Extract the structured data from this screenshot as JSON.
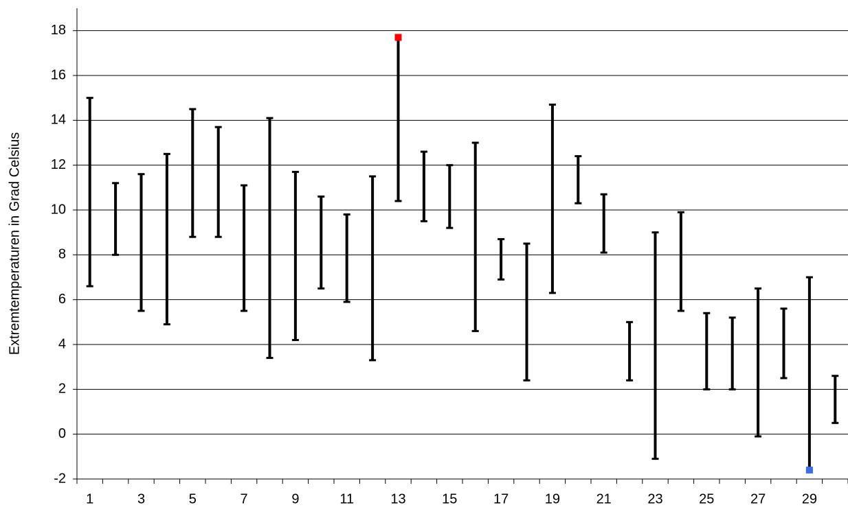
{
  "chart_data": {
    "type": "range",
    "y_label": "Extremtemperaturen in Grad Celsius",
    "categories": [
      "1",
      null,
      "3",
      null,
      "5",
      null,
      "7",
      null,
      "9",
      null,
      "11",
      null,
      "13",
      null,
      "15",
      null,
      "17",
      null,
      "19",
      null,
      "21",
      null,
      "23",
      null,
      "25",
      null,
      "27",
      null,
      "29",
      null
    ],
    "series": [
      {
        "color": "#000000",
        "values": [
          6.6,
          8.0,
          5.5,
          4.9,
          8.8,
          8.8,
          5.5,
          3.4,
          4.2,
          6.5,
          5.9,
          3.3,
          10.4,
          9.5,
          9.2,
          4.6,
          6.9,
          2.4,
          6.3,
          10.3,
          8.1,
          2.4,
          -1.1,
          5.5,
          2.0,
          2.0,
          -0.1,
          2.5,
          -1.6,
          0.5
        ]
      },
      {
        "color": "#000000",
        "values": [
          15.0,
          11.2,
          11.6,
          12.5,
          14.5,
          13.7,
          11.1,
          14.1,
          11.7,
          10.6,
          9.8,
          11.5,
          17.7,
          12.6,
          12.0,
          13.0,
          8.7,
          8.5,
          14.7,
          12.4,
          10.7,
          5.0,
          9.0,
          9.9,
          5.4,
          5.2,
          6.5,
          5.6,
          7.0,
          2.6
        ]
      }
    ],
    "max_marker_color": "#ff0000",
    "min_marker_color": "#3a6fe8",
    "ylim": [
      -2,
      19
    ],
    "yticks": [
      -2,
      0,
      2,
      4,
      6,
      8,
      10,
      12,
      14,
      16,
      18
    ],
    "grid": true
  }
}
